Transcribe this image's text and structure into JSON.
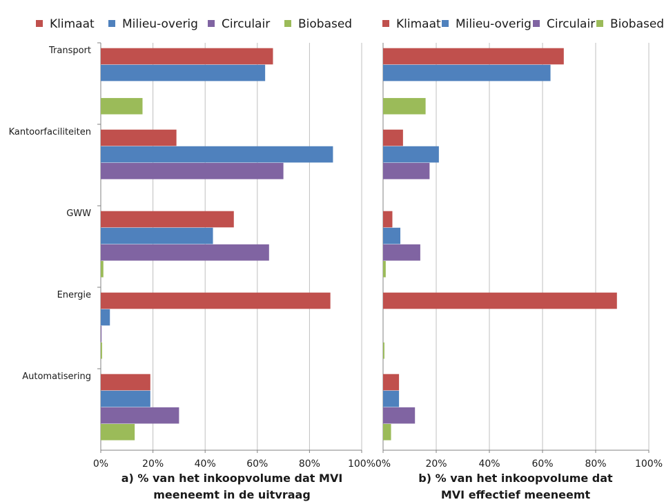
{
  "colors": {
    "Klimaat": "#c0504d",
    "Milieu-overig": "#4f81bd",
    "Circulair": "#8064a2",
    "Biobased": "#9bbb59",
    "grid": "#bfbfbf",
    "axis": "#808080"
  },
  "chart_data": [
    {
      "type": "bar",
      "orientation": "horizontal",
      "caption": [
        "a) % van het inkoopvolume dat MVI",
        "meeneemt in de uitvraag"
      ],
      "categories": [
        "Transport",
        "Kantoorfaciliteiten",
        "GWW",
        "Energie",
        "Automatisering"
      ],
      "series": [
        {
          "name": "Klimaat",
          "values": [
            66,
            29,
            51,
            88,
            19
          ]
        },
        {
          "name": "Milieu-overig",
          "values": [
            63,
            89,
            43,
            3.5,
            19
          ]
        },
        {
          "name": "Circulair",
          "values": [
            0,
            70,
            64.5,
            0.3,
            30
          ]
        },
        {
          "name": "Biobased",
          "values": [
            16,
            0,
            1,
            0.5,
            13
          ]
        }
      ],
      "xlim": [
        0,
        100
      ],
      "xticks": [
        "0%",
        "20%",
        "40%",
        "60%",
        "80%",
        "100%"
      ],
      "legend": "top",
      "grid": true
    },
    {
      "type": "bar",
      "orientation": "horizontal",
      "caption": [
        "b) % van het inkoopvolume dat",
        "MVI effectief meeneemt"
      ],
      "categories": [
        "Transport",
        "Kantoorfaciliteiten",
        "GWW",
        "Energie",
        "Automatisering"
      ],
      "series": [
        {
          "name": "Klimaat",
          "values": [
            68,
            7.5,
            3.5,
            88,
            6
          ]
        },
        {
          "name": "Milieu-overig",
          "values": [
            63,
            21,
            6.5,
            0,
            6
          ]
        },
        {
          "name": "Circulair",
          "values": [
            0,
            17.5,
            14,
            0,
            12
          ]
        },
        {
          "name": "Biobased",
          "values": [
            16,
            0,
            1,
            0.5,
            3
          ]
        }
      ],
      "xlim": [
        0,
        100
      ],
      "xticks": [
        "0%",
        "20%",
        "40%",
        "60%",
        "80%",
        "100%"
      ],
      "legend": "top",
      "grid": true
    }
  ]
}
